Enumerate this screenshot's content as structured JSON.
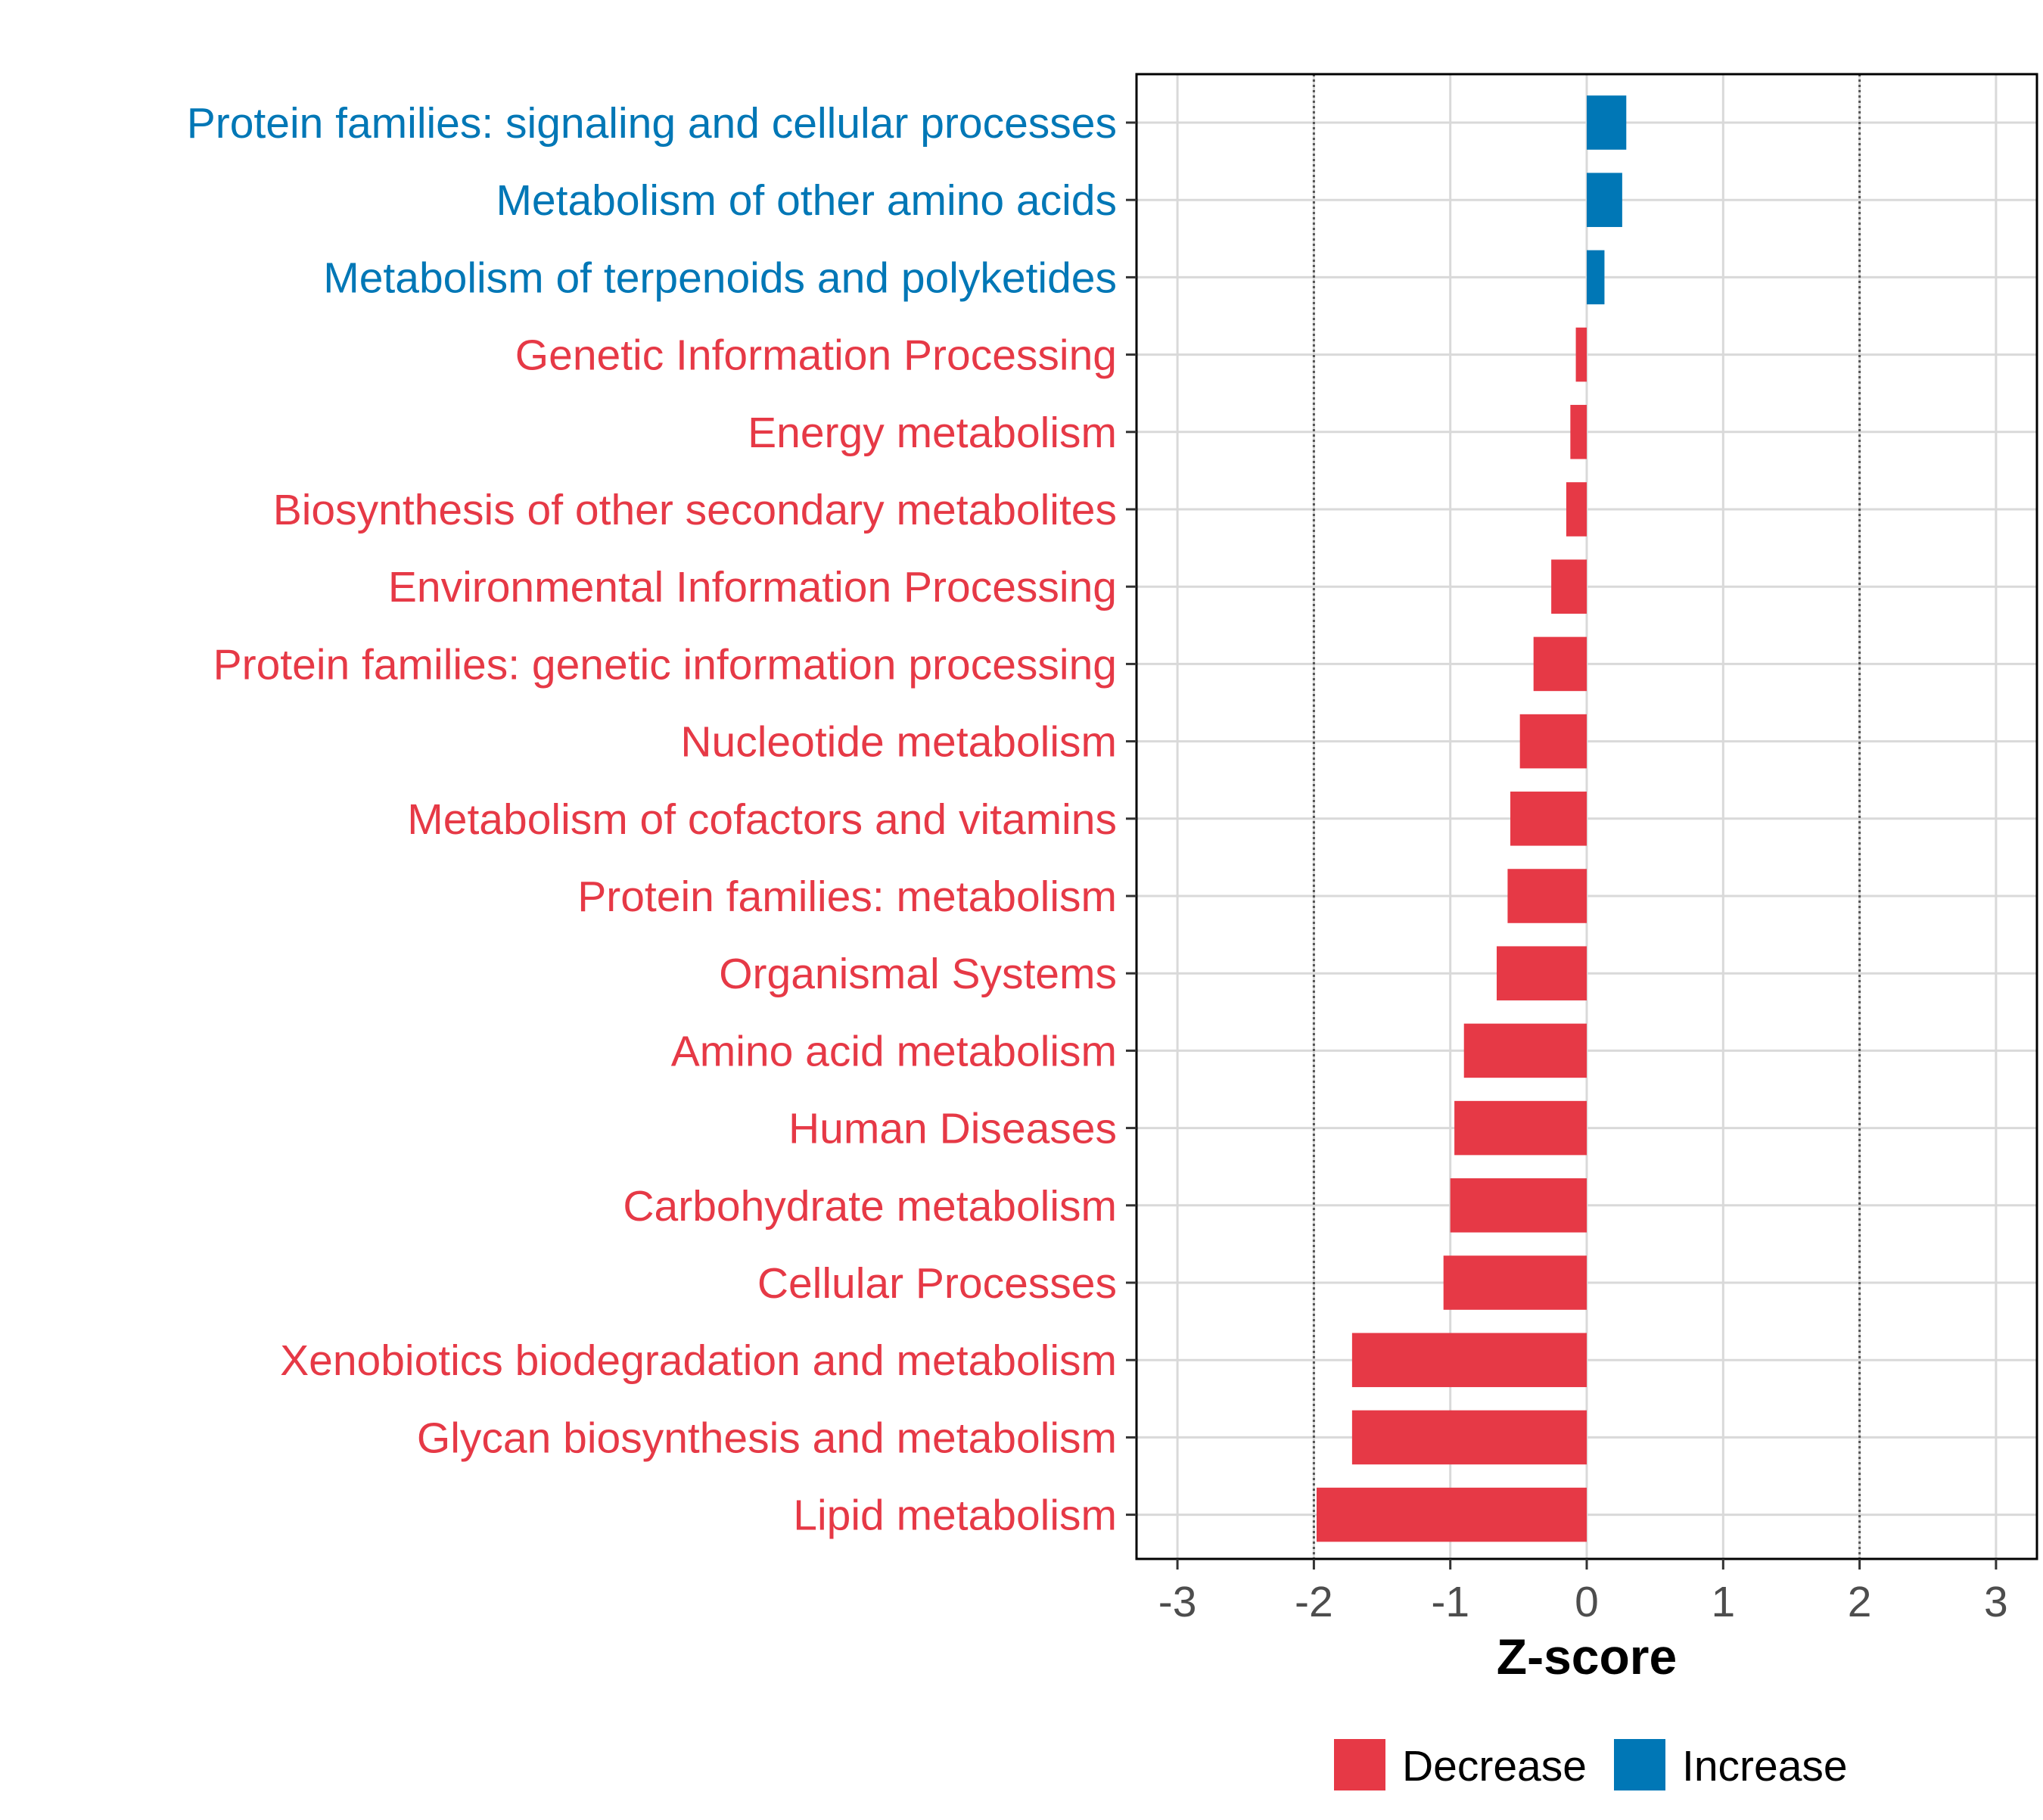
{
  "chart_data": {
    "type": "bar",
    "orientation": "horizontal",
    "xlabel": "Z-score",
    "xlim": [
      -3.3,
      3.3
    ],
    "xticks": [
      -3,
      -2,
      -1,
      0,
      1,
      2,
      3
    ],
    "xtick_labels": [
      "-3",
      "-2",
      "-1",
      "0",
      "1",
      "2",
      "3"
    ],
    "reference_lines": [
      -2,
      2
    ],
    "grid": true,
    "colors": {
      "Decrease": "#e63946",
      "Increase": "#0077b6"
    },
    "categories": [
      "Protein families: signaling and cellular processes",
      "Metabolism of other amino acids",
      "Metabolism of terpenoids and polyketides",
      "Genetic Information Processing",
      "Energy metabolism",
      "Biosynthesis of other secondary metabolites",
      "Environmental Information Processing",
      "Protein families: genetic information processing",
      "Nucleotide metabolism",
      "Metabolism of cofactors and vitamins",
      "Protein families: metabolism",
      "Organismal Systems",
      "Amino acid metabolism",
      "Human Diseases",
      "Carbohydrate metabolism",
      "Cellular Processes",
      "Xenobiotics biodegradation and metabolism",
      "Glycan biosynthesis and metabolism",
      "Lipid metabolism"
    ],
    "values": [
      0.29,
      0.26,
      0.13,
      -0.08,
      -0.12,
      -0.15,
      -0.26,
      -0.39,
      -0.49,
      -0.56,
      -0.58,
      -0.66,
      -0.9,
      -0.97,
      -1.0,
      -1.05,
      -1.72,
      -1.72,
      -1.98
    ],
    "groups": [
      "Increase",
      "Increase",
      "Increase",
      "Decrease",
      "Decrease",
      "Decrease",
      "Decrease",
      "Decrease",
      "Decrease",
      "Decrease",
      "Decrease",
      "Decrease",
      "Decrease",
      "Decrease",
      "Decrease",
      "Decrease",
      "Decrease",
      "Decrease",
      "Decrease"
    ],
    "legend": {
      "position": "bottom",
      "entries": [
        "Decrease",
        "Increase"
      ]
    }
  }
}
